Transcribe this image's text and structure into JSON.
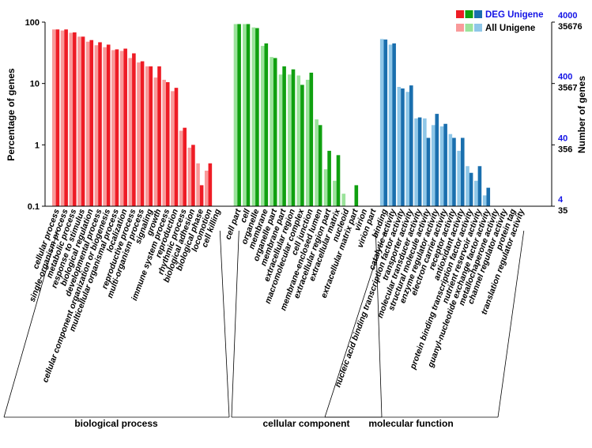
{
  "chart_data": {
    "type": "bar",
    "scale": "log",
    "ylabel": "Percentage of genes",
    "ylabel_right": "Number of genes",
    "ylim": [
      0.1,
      100
    ],
    "left_ticks": [
      "100",
      "10",
      "1",
      "0.1"
    ],
    "right_ticks_all": [
      "35676",
      "3567",
      "356",
      "35"
    ],
    "right_ticks_deg": [
      "4000",
      "400",
      "40",
      "4"
    ],
    "legend": [
      {
        "name": "DEG Unigene",
        "colors": [
          "#ee1c25",
          "#10a010",
          "#1a6fae"
        ]
      },
      {
        "name": "All Unigene",
        "colors": [
          "#f99a9a",
          "#9be39b",
          "#8fc7e8"
        ]
      }
    ],
    "groups": [
      {
        "name": "biological process",
        "light": "#f99a9a",
        "dark": "#ee1c25",
        "categories": [
          {
            "name": "cellular process",
            "all": 76,
            "deg": 76
          },
          {
            "name": "single-organism process",
            "all": 73,
            "deg": 76
          },
          {
            "name": "metabolic process",
            "all": 67,
            "deg": 68
          },
          {
            "name": "response to stimulus",
            "all": 58,
            "deg": 58
          },
          {
            "name": "biological regulation",
            "all": 48,
            "deg": 51
          },
          {
            "name": "developmental process",
            "all": 42,
            "deg": 47
          },
          {
            "name": "cellular component organization or biogenesis",
            "all": 39,
            "deg": 43
          },
          {
            "name": "multicellular organismal process",
            "all": 35,
            "deg": 36
          },
          {
            "name": "localization",
            "all": 34,
            "deg": 37
          },
          {
            "name": "reproductive process",
            "all": 26,
            "deg": 31
          },
          {
            "name": "multi-organism process",
            "all": 22,
            "deg": 23
          },
          {
            "name": "signaling",
            "all": 19,
            "deg": 19
          },
          {
            "name": "growth",
            "all": 12.5,
            "deg": 19
          },
          {
            "name": "immune system process",
            "all": 11.5,
            "deg": 10.5
          },
          {
            "name": "reproduction",
            "all": 7.5,
            "deg": 8.5
          },
          {
            "name": "rhythmic process",
            "all": 1.7,
            "deg": 1.9
          },
          {
            "name": "biological adhesion",
            "all": 0.9,
            "deg": 1.0
          },
          {
            "name": "biological phase",
            "all": 0.5,
            "deg": 0.22
          },
          {
            "name": "locomotion",
            "all": 0.38,
            "deg": 0.5
          },
          {
            "name": "cell killing",
            "all": null,
            "deg": null
          }
        ]
      },
      {
        "name": "cellular component",
        "light": "#9be39b",
        "dark": "#10a010",
        "categories": [
          {
            "name": "cell part",
            "all": 93,
            "deg": 93
          },
          {
            "name": "cell",
            "all": 93,
            "deg": 93
          },
          {
            "name": "organelle",
            "all": 82,
            "deg": 80
          },
          {
            "name": "membrane",
            "all": 41,
            "deg": 45
          },
          {
            "name": "organelle part",
            "all": 27,
            "deg": 26
          },
          {
            "name": "membrane part",
            "all": 14,
            "deg": 19
          },
          {
            "name": "extracellular region",
            "all": 14,
            "deg": 17
          },
          {
            "name": "macromolecular complex",
            "all": 13.5,
            "deg": 9.5
          },
          {
            "name": "cell junction",
            "all": 11.5,
            "deg": 15
          },
          {
            "name": "membrane-enclosed lumen",
            "all": 2.6,
            "deg": 2.1
          },
          {
            "name": "extracellular region part",
            "all": 0.4,
            "deg": 0.8
          },
          {
            "name": "extracellular matrix",
            "all": 0.26,
            "deg": 0.68
          },
          {
            "name": "nucleoid",
            "all": 0.16,
            "deg": null
          },
          {
            "name": "extracellular matrix part",
            "all": null,
            "deg": 0.22
          },
          {
            "name": "virion",
            "all": null,
            "deg": null
          },
          {
            "name": "virion part",
            "all": null,
            "deg": null
          }
        ]
      },
      {
        "name": "molecular function",
        "light": "#8fc7e8",
        "dark": "#1a6fae",
        "categories": [
          {
            "name": "binding",
            "all": 53,
            "deg": 52
          },
          {
            "name": "catalytic activity",
            "all": 43,
            "deg": 45
          },
          {
            "name": "nucleic acid binding transcription factor activity",
            "all": 8.8,
            "deg": 8.3
          },
          {
            "name": "transporter activity",
            "all": 7.3,
            "deg": 9.3
          },
          {
            "name": "molecular transducer activity",
            "all": 2.7,
            "deg": 2.8
          },
          {
            "name": "structural molecule activity",
            "all": 2.7,
            "deg": 1.3
          },
          {
            "name": "enzyme regulator activity",
            "all": 2.1,
            "deg": 3.2
          },
          {
            "name": "electron carrier activity",
            "all": 2.0,
            "deg": 2.2
          },
          {
            "name": "receptor activity",
            "all": 1.5,
            "deg": 1.3
          },
          {
            "name": "antioxidant activity",
            "all": 0.8,
            "deg": 1.3
          },
          {
            "name": "protein binding transcription factor activity",
            "all": 0.45,
            "deg": 0.35
          },
          {
            "name": "nutrient reservoir activity",
            "all": 0.26,
            "deg": 0.45
          },
          {
            "name": "guanyl-nucleotide exchange factor activity",
            "all": 0.15,
            "deg": 0.2
          },
          {
            "name": "metallochaperone activity",
            "all": null,
            "deg": null
          },
          {
            "name": "channel regulator activity",
            "all": null,
            "deg": null
          },
          {
            "name": "protein tag",
            "all": null,
            "deg": null
          },
          {
            "name": "translation regulator activity",
            "all": null,
            "deg": null
          }
        ]
      }
    ]
  }
}
